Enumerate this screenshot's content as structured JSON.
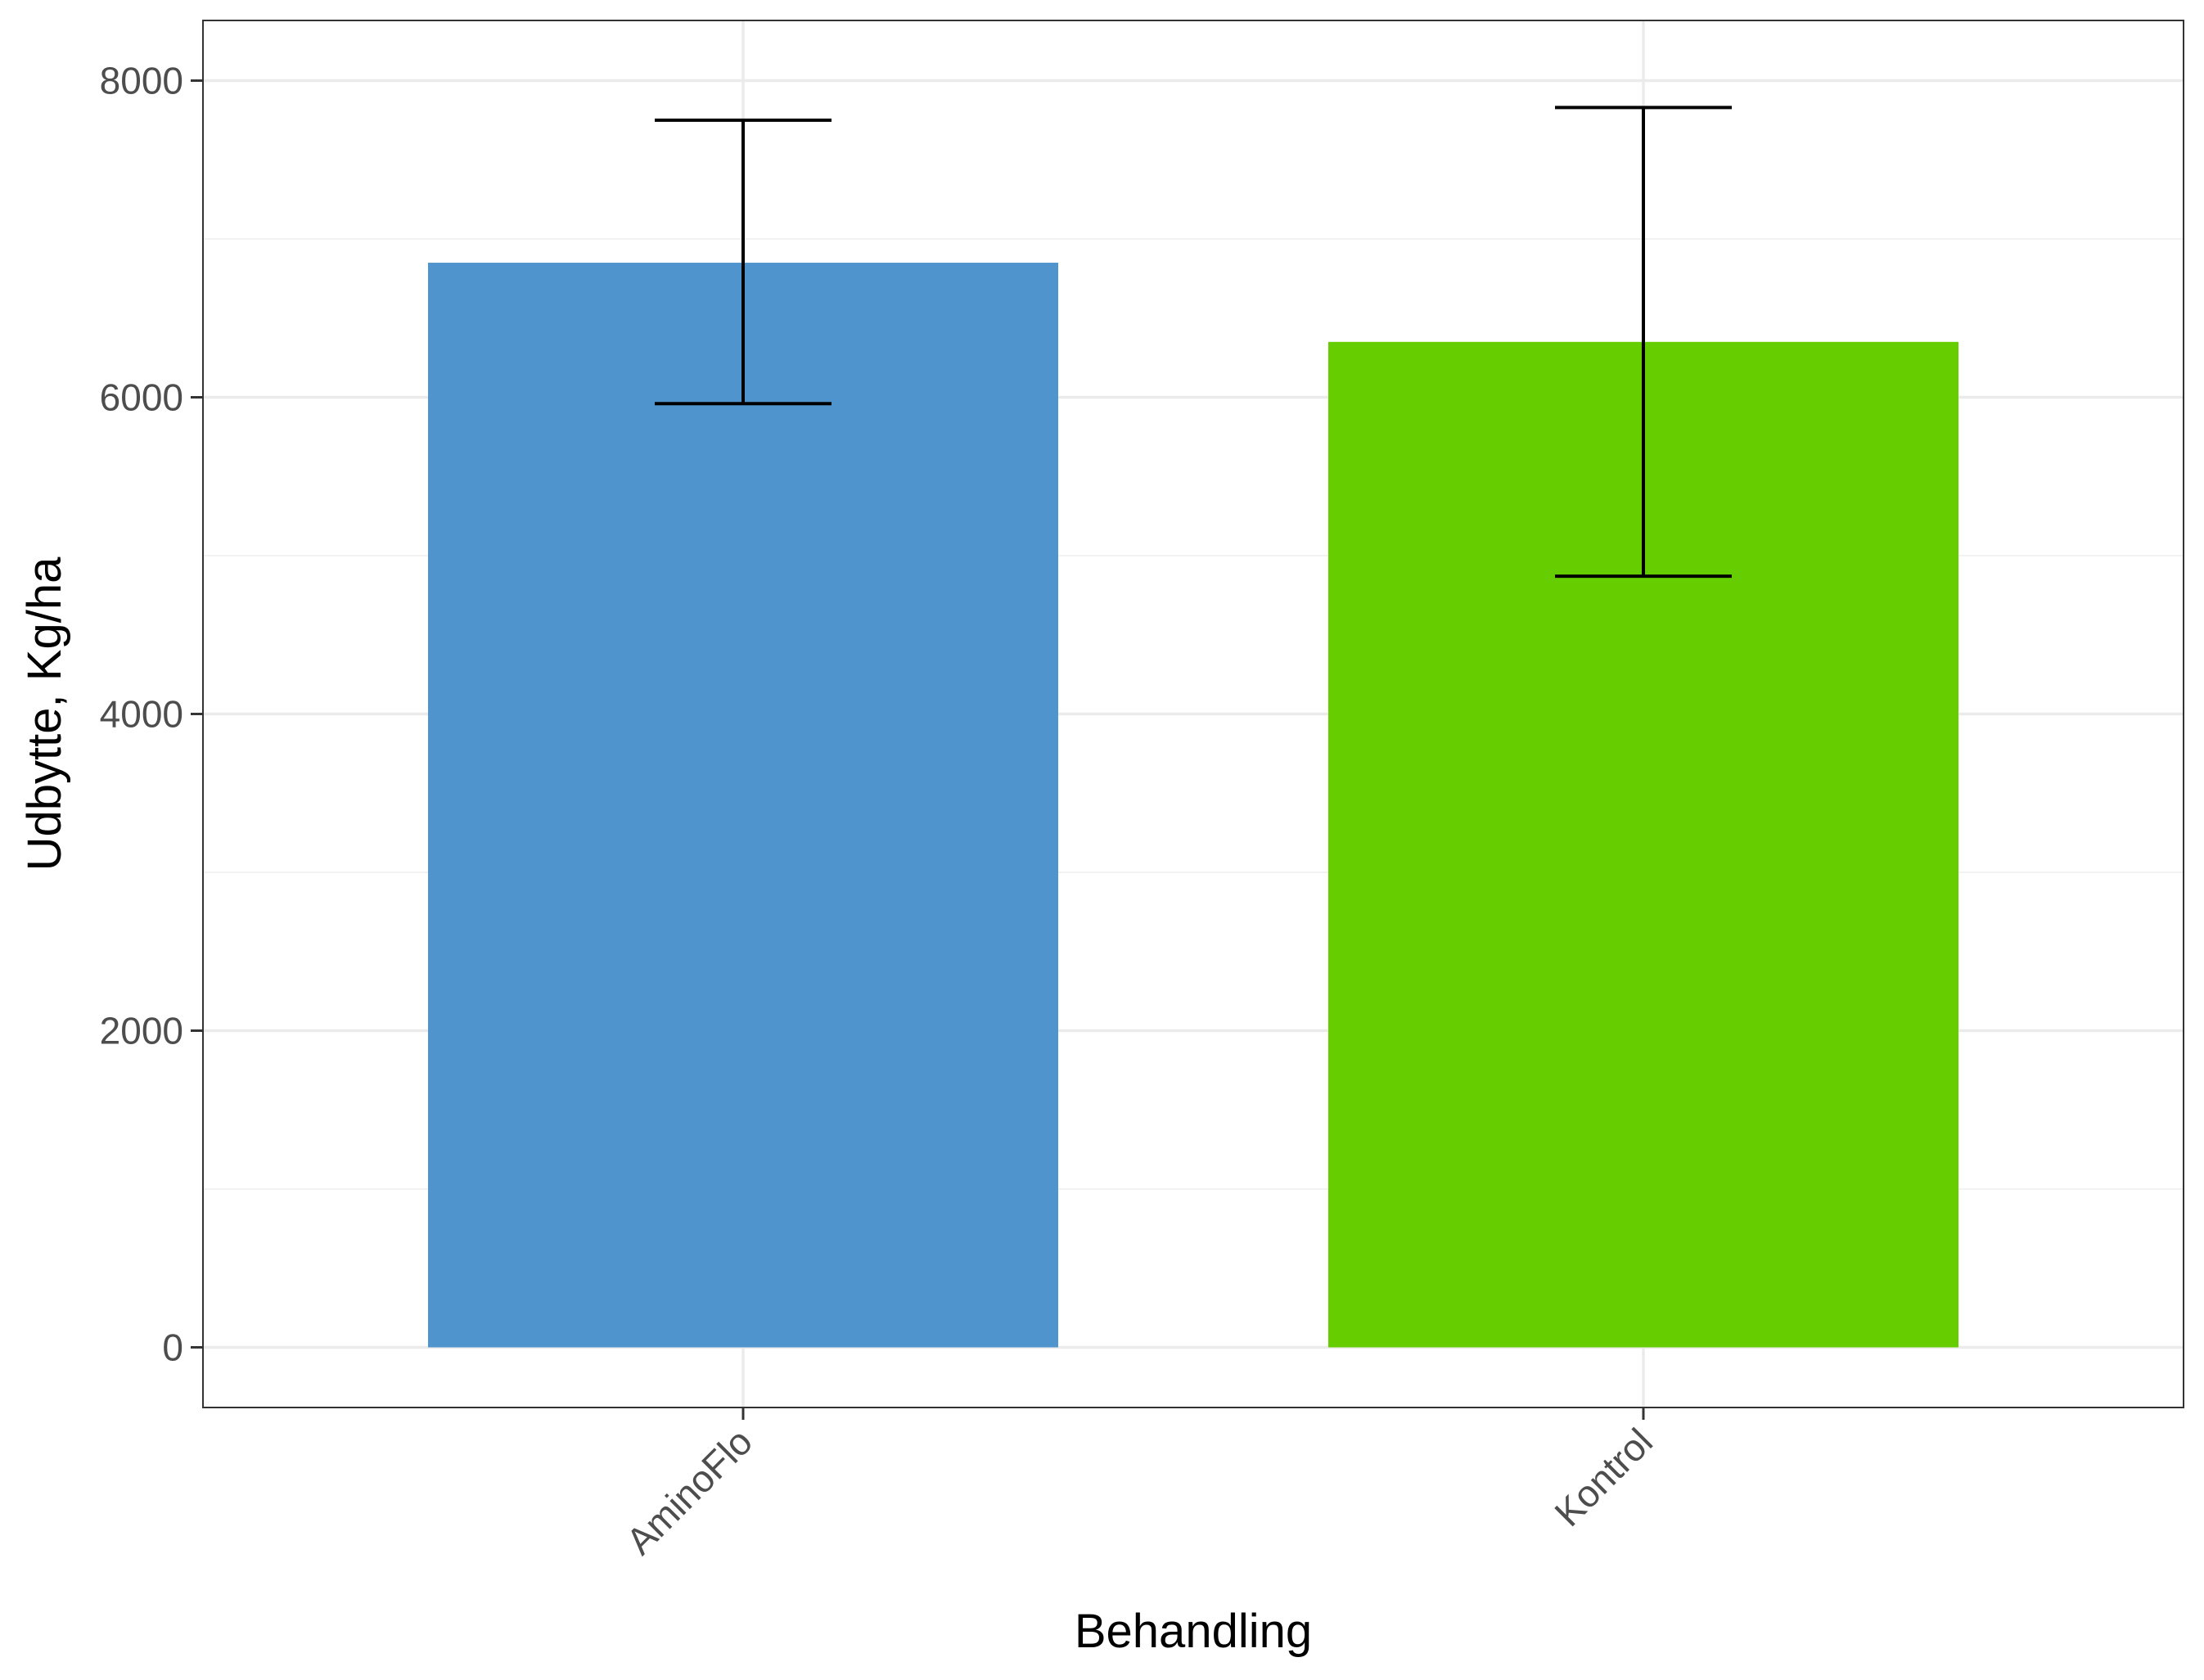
{
  "chart_data": {
    "type": "bar",
    "title": "",
    "xlabel": "Behandling",
    "ylabel": "Udbytte, Kg/ha",
    "categories": [
      "AminoFlo",
      "Kontrol"
    ],
    "values": [
      6850,
      6350
    ],
    "error_bars": [
      {
        "low": 5960,
        "high": 7750
      },
      {
        "low": 4870,
        "high": 7830
      }
    ],
    "colors": [
      "#4f94cd",
      "#66cd00"
    ],
    "ylim": [
      -380,
      8380
    ],
    "yticks": [
      0,
      2000,
      4000,
      6000,
      8000
    ],
    "ytick_labels": [
      "0",
      "2000",
      "4000",
      "6000",
      "8000"
    ],
    "minor_yticks": [
      1000,
      3000,
      5000,
      7000
    ],
    "grid": true,
    "legend": "none",
    "theme": "bw"
  }
}
